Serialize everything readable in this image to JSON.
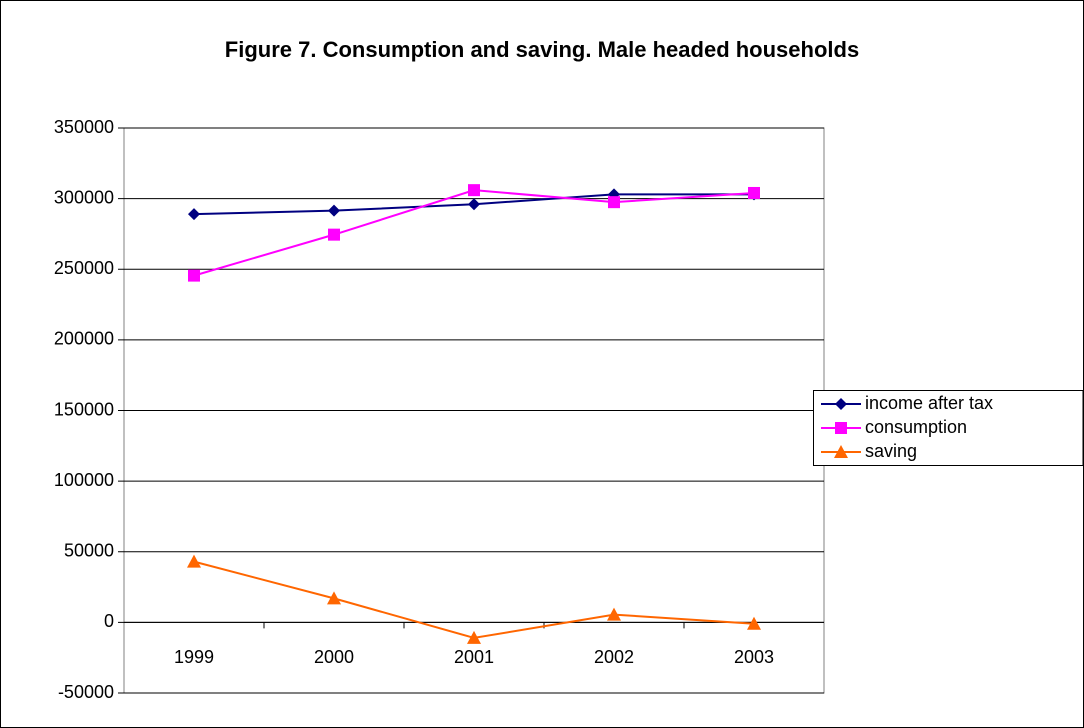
{
  "chart_data": {
    "type": "line",
    "title": "Figure 7. Consumption and saving. Male headed households",
    "categories": [
      "1999",
      "2000",
      "2001",
      "2002",
      "2003"
    ],
    "series": [
      {
        "name": "income after tax",
        "color": "#000080",
        "marker": "diamond",
        "values": [
          289000,
          291500,
          296000,
          303000,
          303000
        ]
      },
      {
        "name": "consumption",
        "color": "#ff00ff",
        "marker": "square",
        "values": [
          245500,
          274500,
          306000,
          297500,
          304000
        ]
      },
      {
        "name": "saving",
        "color": "#ff6600",
        "marker": "triangle",
        "values": [
          43000,
          17000,
          -11000,
          5500,
          -1000
        ]
      }
    ],
    "ylim": [
      -50000,
      350000
    ],
    "yticks": [
      -50000,
      0,
      50000,
      100000,
      150000,
      200000,
      250000,
      300000,
      350000
    ],
    "grid": true,
    "legend": "right"
  }
}
